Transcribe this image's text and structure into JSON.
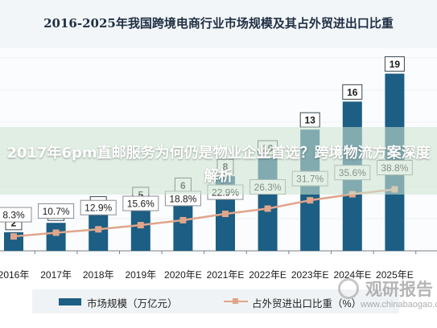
{
  "chart_data": {
    "type": "bar",
    "title": "2016-2025年我国跨境电商行业市场规模及其占外贸进出口比重",
    "categories": [
      "2016年",
      "2017年",
      "2018年",
      "2019年",
      "2020年E",
      "2021年E",
      "2022年E",
      "2023年E",
      "2024年E",
      "2025年E"
    ],
    "series": [
      {
        "name": "市场规模（万亿元）",
        "kind": "bar",
        "values": [
          2,
          3,
          4,
          5,
          6,
          8,
          10,
          13,
          16,
          19
        ],
        "color": "#1c5e84"
      },
      {
        "name": "占外贸进出口比重（%）",
        "kind": "line",
        "values": [
          8.3,
          10.7,
          12.9,
          15.6,
          18.8,
          22.9,
          26.3,
          31.7,
          35.6,
          38.8
        ],
        "value_labels": [
          "8.3%",
          "10.7%",
          "12.9%",
          "15.6%",
          "18.8%",
          "22.9%",
          "26.3%",
          "31.7%",
          "35.6%",
          "38.8%"
        ],
        "color": "#e0a58b"
      }
    ],
    "legend_position": "bottom"
  },
  "overlay": {
    "text": "2017年6pm直邮服务为何仍是物业企业首选？跨境物流方案深度解析"
  },
  "watermark": {
    "brand": "观研报告",
    "url": "www.chinabaogao.com"
  }
}
